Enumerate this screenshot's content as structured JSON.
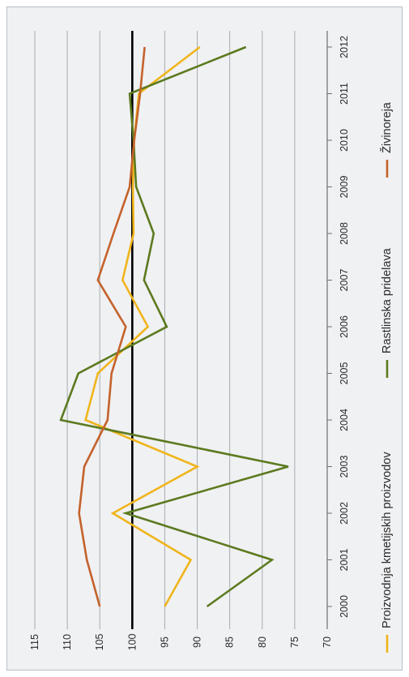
{
  "chart_data": {
    "type": "line",
    "categories": [
      "2000",
      "2001",
      "2002",
      "2003",
      "2004",
      "2005",
      "2006",
      "2007",
      "2008",
      "2009",
      "2010",
      "2011",
      "2012"
    ],
    "series": [
      {
        "name": "Proizvodnja kmetijskih proizvodov",
        "color": "#f0b51c",
        "values": [
          95,
          91,
          103,
          90,
          107.2,
          105.3,
          97.6,
          101.5,
          99.8,
          99.9,
          99.7,
          99,
          89.6
        ]
      },
      {
        "name": "Rastlinska pridelava",
        "color": "#5c7a1f",
        "values": [
          88.5,
          78.5,
          101,
          76,
          111,
          108.3,
          94.7,
          98.2,
          96.7,
          99.4,
          99.8,
          100.4,
          82.5
        ]
      },
      {
        "name": "Živinoreja",
        "color": "#c4622b",
        "values": [
          105,
          107,
          108.2,
          107.4,
          103.8,
          103.2,
          101,
          105.3,
          102.9,
          100.4,
          99.7,
          98.8,
          98.1
        ]
      }
    ],
    "yticks": [
      115,
      110,
      105,
      100,
      95,
      90,
      85,
      80,
      75,
      70
    ],
    "ylim": [
      70,
      115
    ],
    "reference_line": {
      "value": 100,
      "color": "#000000"
    },
    "grid": true,
    "legend": "bottom"
  }
}
